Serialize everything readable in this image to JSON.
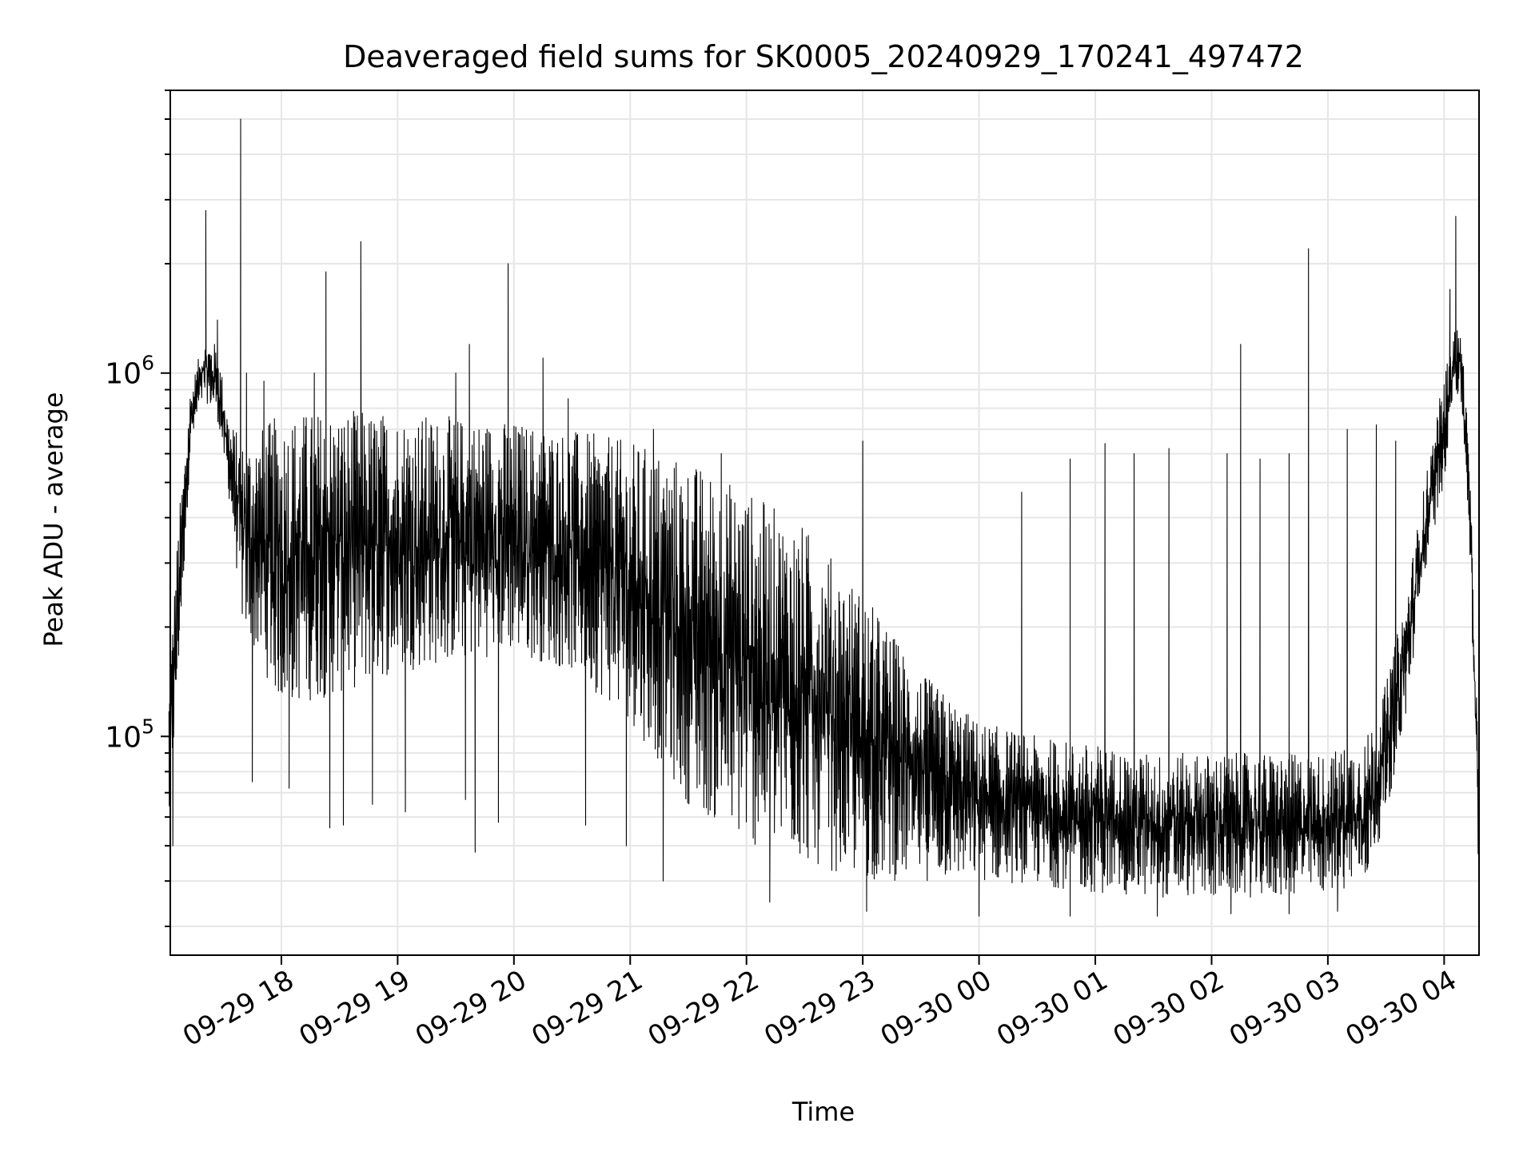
{
  "chart_data": {
    "type": "line",
    "title": "Deaveraged field sums for SK0005_20240929_170241_497472",
    "xlabel": "Time",
    "ylabel": "Peak ADU - average",
    "y_scale": "log",
    "ylim": [
      25000,
      6000000
    ],
    "xlim": [
      "2024-09-29 17:02:41",
      "2024-09-30 04:18:00"
    ],
    "grid": true,
    "line_color": "#000000",
    "x_ticks": [
      {
        "label": "09-29 18",
        "t": "2024-09-29 18:00"
      },
      {
        "label": "09-29 19",
        "t": "2024-09-29 19:00"
      },
      {
        "label": "09-29 20",
        "t": "2024-09-29 20:00"
      },
      {
        "label": "09-29 21",
        "t": "2024-09-29 21:00"
      },
      {
        "label": "09-29 22",
        "t": "2024-09-29 22:00"
      },
      {
        "label": "09-29 23",
        "t": "2024-09-29 23:00"
      },
      {
        "label": "09-30 00",
        "t": "2024-09-30 00:00"
      },
      {
        "label": "09-30 01",
        "t": "2024-09-30 01:00"
      },
      {
        "label": "09-30 02",
        "t": "2024-09-30 02:00"
      },
      {
        "label": "09-30 03",
        "t": "2024-09-30 03:00"
      },
      {
        "label": "09-30 04",
        "t": "2024-09-30 04:00"
      }
    ],
    "y_ticks": [
      {
        "value": 100000,
        "base": "10",
        "exp": "5"
      },
      {
        "value": 1000000,
        "base": "10",
        "exp": "6"
      }
    ],
    "envelope": [
      {
        "t": "2024-09-29 17:02",
        "low": 50000,
        "high": 150000
      },
      {
        "t": "2024-09-29 17:07",
        "low": 150000,
        "high": 400000
      },
      {
        "t": "2024-09-29 17:13",
        "low": 600000,
        "high": 900000
      },
      {
        "t": "2024-09-29 17:20",
        "low": 850000,
        "high": 1250000
      },
      {
        "t": "2024-09-29 17:27",
        "low": 750000,
        "high": 1200000
      },
      {
        "t": "2024-09-29 17:33",
        "low": 450000,
        "high": 750000
      },
      {
        "t": "2024-09-29 17:40",
        "low": 200000,
        "high": 650000
      },
      {
        "t": "2024-09-29 18:00",
        "low": 120000,
        "high": 780000
      },
      {
        "t": "2024-09-29 18:30",
        "low": 130000,
        "high": 800000
      },
      {
        "t": "2024-09-29 19:00",
        "low": 150000,
        "high": 780000
      },
      {
        "t": "2024-09-29 19:30",
        "low": 160000,
        "high": 760000
      },
      {
        "t": "2024-09-29 20:00",
        "low": 170000,
        "high": 740000
      },
      {
        "t": "2024-09-29 20:30",
        "low": 150000,
        "high": 700000
      },
      {
        "t": "2024-09-29 21:00",
        "low": 110000,
        "high": 650000
      },
      {
        "t": "2024-09-29 21:30",
        "low": 65000,
        "high": 580000
      },
      {
        "t": "2024-09-29 22:00",
        "low": 50000,
        "high": 480000
      },
      {
        "t": "2024-09-29 22:30",
        "low": 45000,
        "high": 380000
      },
      {
        "t": "2024-09-29 23:00",
        "low": 40000,
        "high": 250000
      },
      {
        "t": "2024-09-29 23:30",
        "low": 40000,
        "high": 150000
      },
      {
        "t": "2024-09-30 00:00",
        "low": 40000,
        "high": 110000
      },
      {
        "t": "2024-09-30 00:30",
        "low": 39000,
        "high": 100000
      },
      {
        "t": "2024-09-30 01:00",
        "low": 37000,
        "high": 95000
      },
      {
        "t": "2024-09-30 01:30",
        "low": 36000,
        "high": 90000
      },
      {
        "t": "2024-09-30 02:00",
        "low": 36000,
        "high": 90000
      },
      {
        "t": "2024-09-30 02:30",
        "low": 36000,
        "high": 90000
      },
      {
        "t": "2024-09-30 03:00",
        "low": 37000,
        "high": 90000
      },
      {
        "t": "2024-09-30 03:20",
        "low": 40000,
        "high": 100000
      },
      {
        "t": "2024-09-30 03:30",
        "low": 60000,
        "high": 140000
      },
      {
        "t": "2024-09-30 03:40",
        "low": 110000,
        "high": 240000
      },
      {
        "t": "2024-09-30 03:50",
        "low": 280000,
        "high": 500000
      },
      {
        "t": "2024-09-30 04:00",
        "low": 500000,
        "high": 1000000
      },
      {
        "t": "2024-09-30 04:05",
        "low": 900000,
        "high": 1350000
      },
      {
        "t": "2024-09-30 04:09",
        "low": 800000,
        "high": 1300000
      },
      {
        "t": "2024-09-30 04:13",
        "low": 350000,
        "high": 600000
      },
      {
        "t": "2024-09-30 04:17",
        "low": 60000,
        "high": 120000
      },
      {
        "t": "2024-09-30 04:18",
        "low": 35000,
        "high": 50000
      }
    ],
    "spikes_up": [
      {
        "t": "2024-09-29 17:27",
        "value": 1400000
      },
      {
        "t": "2024-09-29 17:21",
        "value": 2800000
      },
      {
        "t": "2024-09-29 17:39",
        "value": 5000000
      },
      {
        "t": "2024-09-29 17:42",
        "value": 1000000
      },
      {
        "t": "2024-09-29 17:51",
        "value": 950000
      },
      {
        "t": "2024-09-29 18:23",
        "value": 1900000
      },
      {
        "t": "2024-09-29 18:41",
        "value": 2300000
      },
      {
        "t": "2024-09-29 18:17",
        "value": 1000000
      },
      {
        "t": "2024-09-29 19:30",
        "value": 1000000
      },
      {
        "t": "2024-09-29 19:37",
        "value": 1200000
      },
      {
        "t": "2024-09-29 19:57",
        "value": 2000000
      },
      {
        "t": "2024-09-29 20:15",
        "value": 1100000
      },
      {
        "t": "2024-09-29 20:28",
        "value": 850000
      },
      {
        "t": "2024-09-29 21:12",
        "value": 700000
      },
      {
        "t": "2024-09-29 21:47",
        "value": 600000
      },
      {
        "t": "2024-09-29 23:00",
        "value": 650000
      },
      {
        "t": "2024-09-30 00:22",
        "value": 470000
      },
      {
        "t": "2024-09-30 00:47",
        "value": 580000
      },
      {
        "t": "2024-09-30 01:05",
        "value": 640000
      },
      {
        "t": "2024-09-30 01:20",
        "value": 600000
      },
      {
        "t": "2024-09-30 01:38",
        "value": 620000
      },
      {
        "t": "2024-09-30 02:08",
        "value": 600000
      },
      {
        "t": "2024-09-30 02:15",
        "value": 1200000
      },
      {
        "t": "2024-09-30 02:25",
        "value": 580000
      },
      {
        "t": "2024-09-30 02:40",
        "value": 600000
      },
      {
        "t": "2024-09-30 02:50",
        "value": 2200000
      },
      {
        "t": "2024-09-30 03:10",
        "value": 700000
      },
      {
        "t": "2024-09-30 03:25",
        "value": 720000
      },
      {
        "t": "2024-09-30 03:35",
        "value": 650000
      },
      {
        "t": "2024-09-30 04:03",
        "value": 1700000
      },
      {
        "t": "2024-09-30 04:06",
        "value": 2700000
      }
    ],
    "spikes_down": [
      {
        "t": "2024-09-29 17:04",
        "value": 50000
      },
      {
        "t": "2024-09-29 17:45",
        "value": 75000
      },
      {
        "t": "2024-09-29 18:04",
        "value": 72000
      },
      {
        "t": "2024-09-29 18:25",
        "value": 56000
      },
      {
        "t": "2024-09-29 18:32",
        "value": 57000
      },
      {
        "t": "2024-09-29 18:47",
        "value": 65000
      },
      {
        "t": "2024-09-29 19:04",
        "value": 62000
      },
      {
        "t": "2024-09-29 19:35",
        "value": 67000
      },
      {
        "t": "2024-09-29 19:40",
        "value": 48000
      },
      {
        "t": "2024-09-29 19:52",
        "value": 58000
      },
      {
        "t": "2024-09-29 20:37",
        "value": 57000
      },
      {
        "t": "2024-09-29 20:58",
        "value": 50000
      },
      {
        "t": "2024-09-29 21:17",
        "value": 40000
      },
      {
        "t": "2024-09-29 22:12",
        "value": 35000
      },
      {
        "t": "2024-09-29 23:02",
        "value": 33000
      },
      {
        "t": "2024-09-30 00:00",
        "value": 32000
      },
      {
        "t": "2024-09-30 00:47",
        "value": 32000
      },
      {
        "t": "2024-09-30 01:32",
        "value": 32000
      },
      {
        "t": "2024-09-30 02:10",
        "value": 32500
      },
      {
        "t": "2024-09-30 02:40",
        "value": 32500
      },
      {
        "t": "2024-09-30 03:05",
        "value": 33000
      }
    ]
  }
}
